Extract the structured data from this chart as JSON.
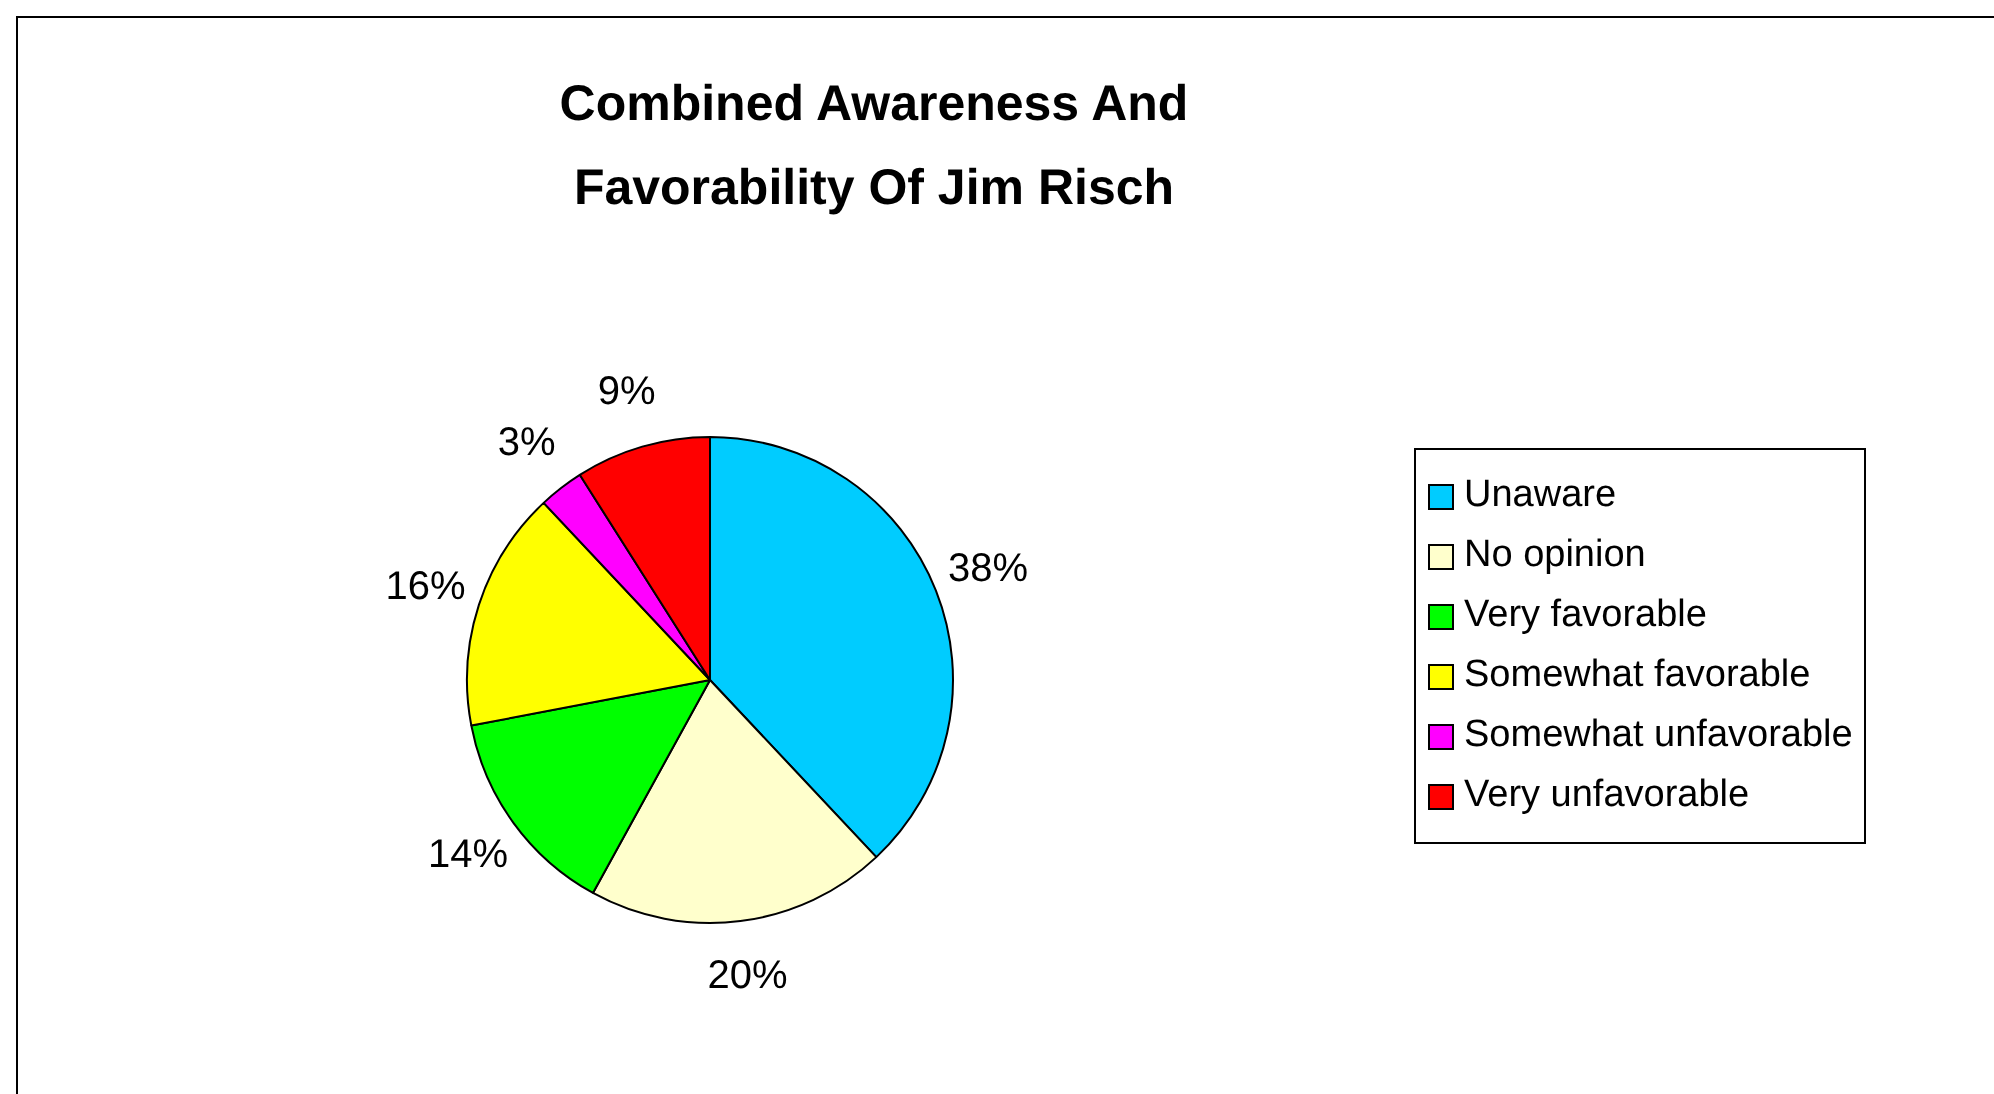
{
  "chart_data": {
    "type": "pie",
    "title": "Combined Awareness And Favorability Of Jim Risch",
    "categories": [
      "Unaware",
      "No opinion",
      "Very favorable",
      "Somewhat favorable",
      "Somewhat unfavorable",
      "Very unfavorable"
    ],
    "values": [
      38,
      20,
      14,
      16,
      3,
      9
    ],
    "colors": [
      "#00ccff",
      "#ffffcc",
      "#00ff00",
      "#ffff00",
      "#ff00ff",
      "#ff0000"
    ],
    "value_labels": [
      "38%",
      "20%",
      "14%",
      "16%",
      "3%",
      "9%"
    ],
    "legend": "right"
  }
}
